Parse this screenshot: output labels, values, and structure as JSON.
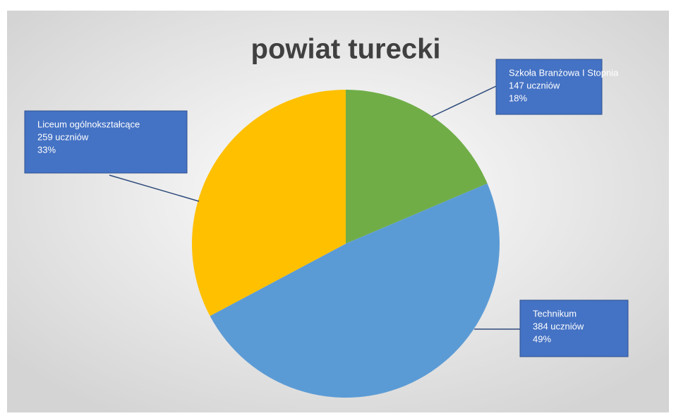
{
  "chart_data": {
    "type": "pie",
    "title": "powiat turecki",
    "categories": [
      "Szkoła Branżowa I Stopnia",
      "Technikum",
      "Liceum ogólnokształcące"
    ],
    "values": [
      147,
      384,
      259
    ],
    "value_labels": [
      "147 uczniów",
      "384 uczniów",
      "259 uczniów"
    ],
    "percentages": [
      18,
      49,
      33
    ],
    "percentage_labels": [
      "18%",
      "49%",
      "33%"
    ],
    "colors": [
      "#70ad47",
      "#5b9bd5",
      "#ffc000"
    ]
  }
}
